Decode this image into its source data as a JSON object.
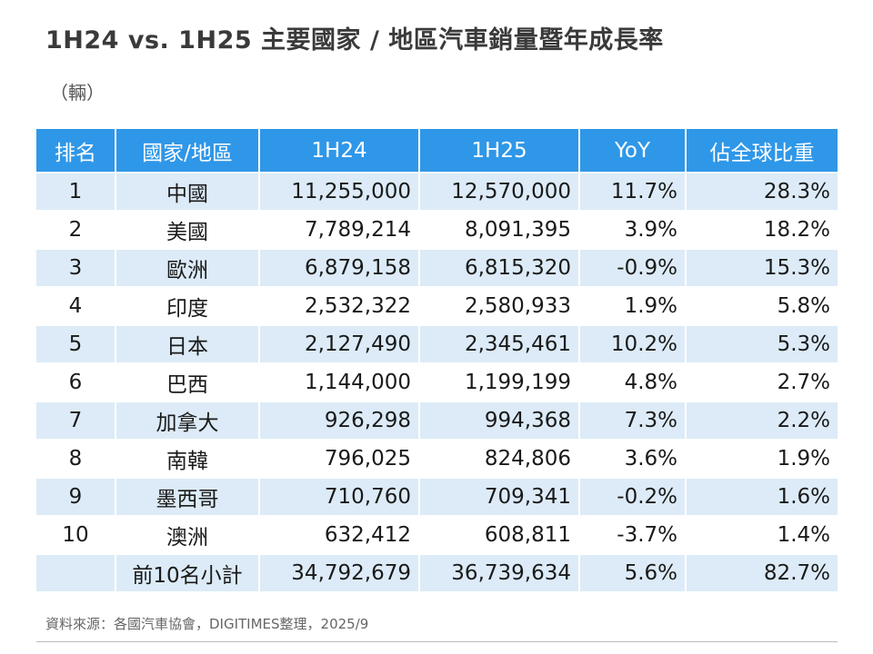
{
  "title": "1H24 vs. 1H25 主要國家 / 地區汽車銷量暨年成長率",
  "unit": "（輛）",
  "source": "資料來源：各國汽車協會，DIGITIMES整理，2025/9",
  "colors": {
    "header_bg": "#2f97e8",
    "stripe": "#dcebf7"
  },
  "chart_data": {
    "type": "table",
    "columns": [
      "排名",
      "國家/地區",
      "1H24",
      "1H25",
      "YoY",
      "佔全球比重"
    ],
    "rows": [
      [
        "1",
        "中國",
        "11,255,000",
        "12,570,000",
        "11.7%",
        "28.3%"
      ],
      [
        "2",
        "美國",
        "7,789,214",
        "8,091,395",
        "3.9%",
        "18.2%"
      ],
      [
        "3",
        "歐洲",
        "6,879,158",
        "6,815,320",
        "-0.9%",
        "15.3%"
      ],
      [
        "4",
        "印度",
        "2,532,322",
        "2,580,933",
        "1.9%",
        "5.8%"
      ],
      [
        "5",
        "日本",
        "2,127,490",
        "2,345,461",
        "10.2%",
        "5.3%"
      ],
      [
        "6",
        "巴西",
        "1,144,000",
        "1,199,199",
        "4.8%",
        "2.7%"
      ],
      [
        "7",
        "加拿大",
        "926,298",
        "994,368",
        "7.3%",
        "2.2%"
      ],
      [
        "8",
        "南韓",
        "796,025",
        "824,806",
        "3.6%",
        "1.9%"
      ],
      [
        "9",
        "墨西哥",
        "710,760",
        "709,341",
        "-0.2%",
        "1.6%"
      ],
      [
        "10",
        "澳洲",
        "632,412",
        "608,811",
        "-3.7%",
        "1.4%"
      ],
      [
        "",
        "前10名小計",
        "34,792,679",
        "36,739,634",
        "5.6%",
        "82.7%"
      ]
    ]
  }
}
